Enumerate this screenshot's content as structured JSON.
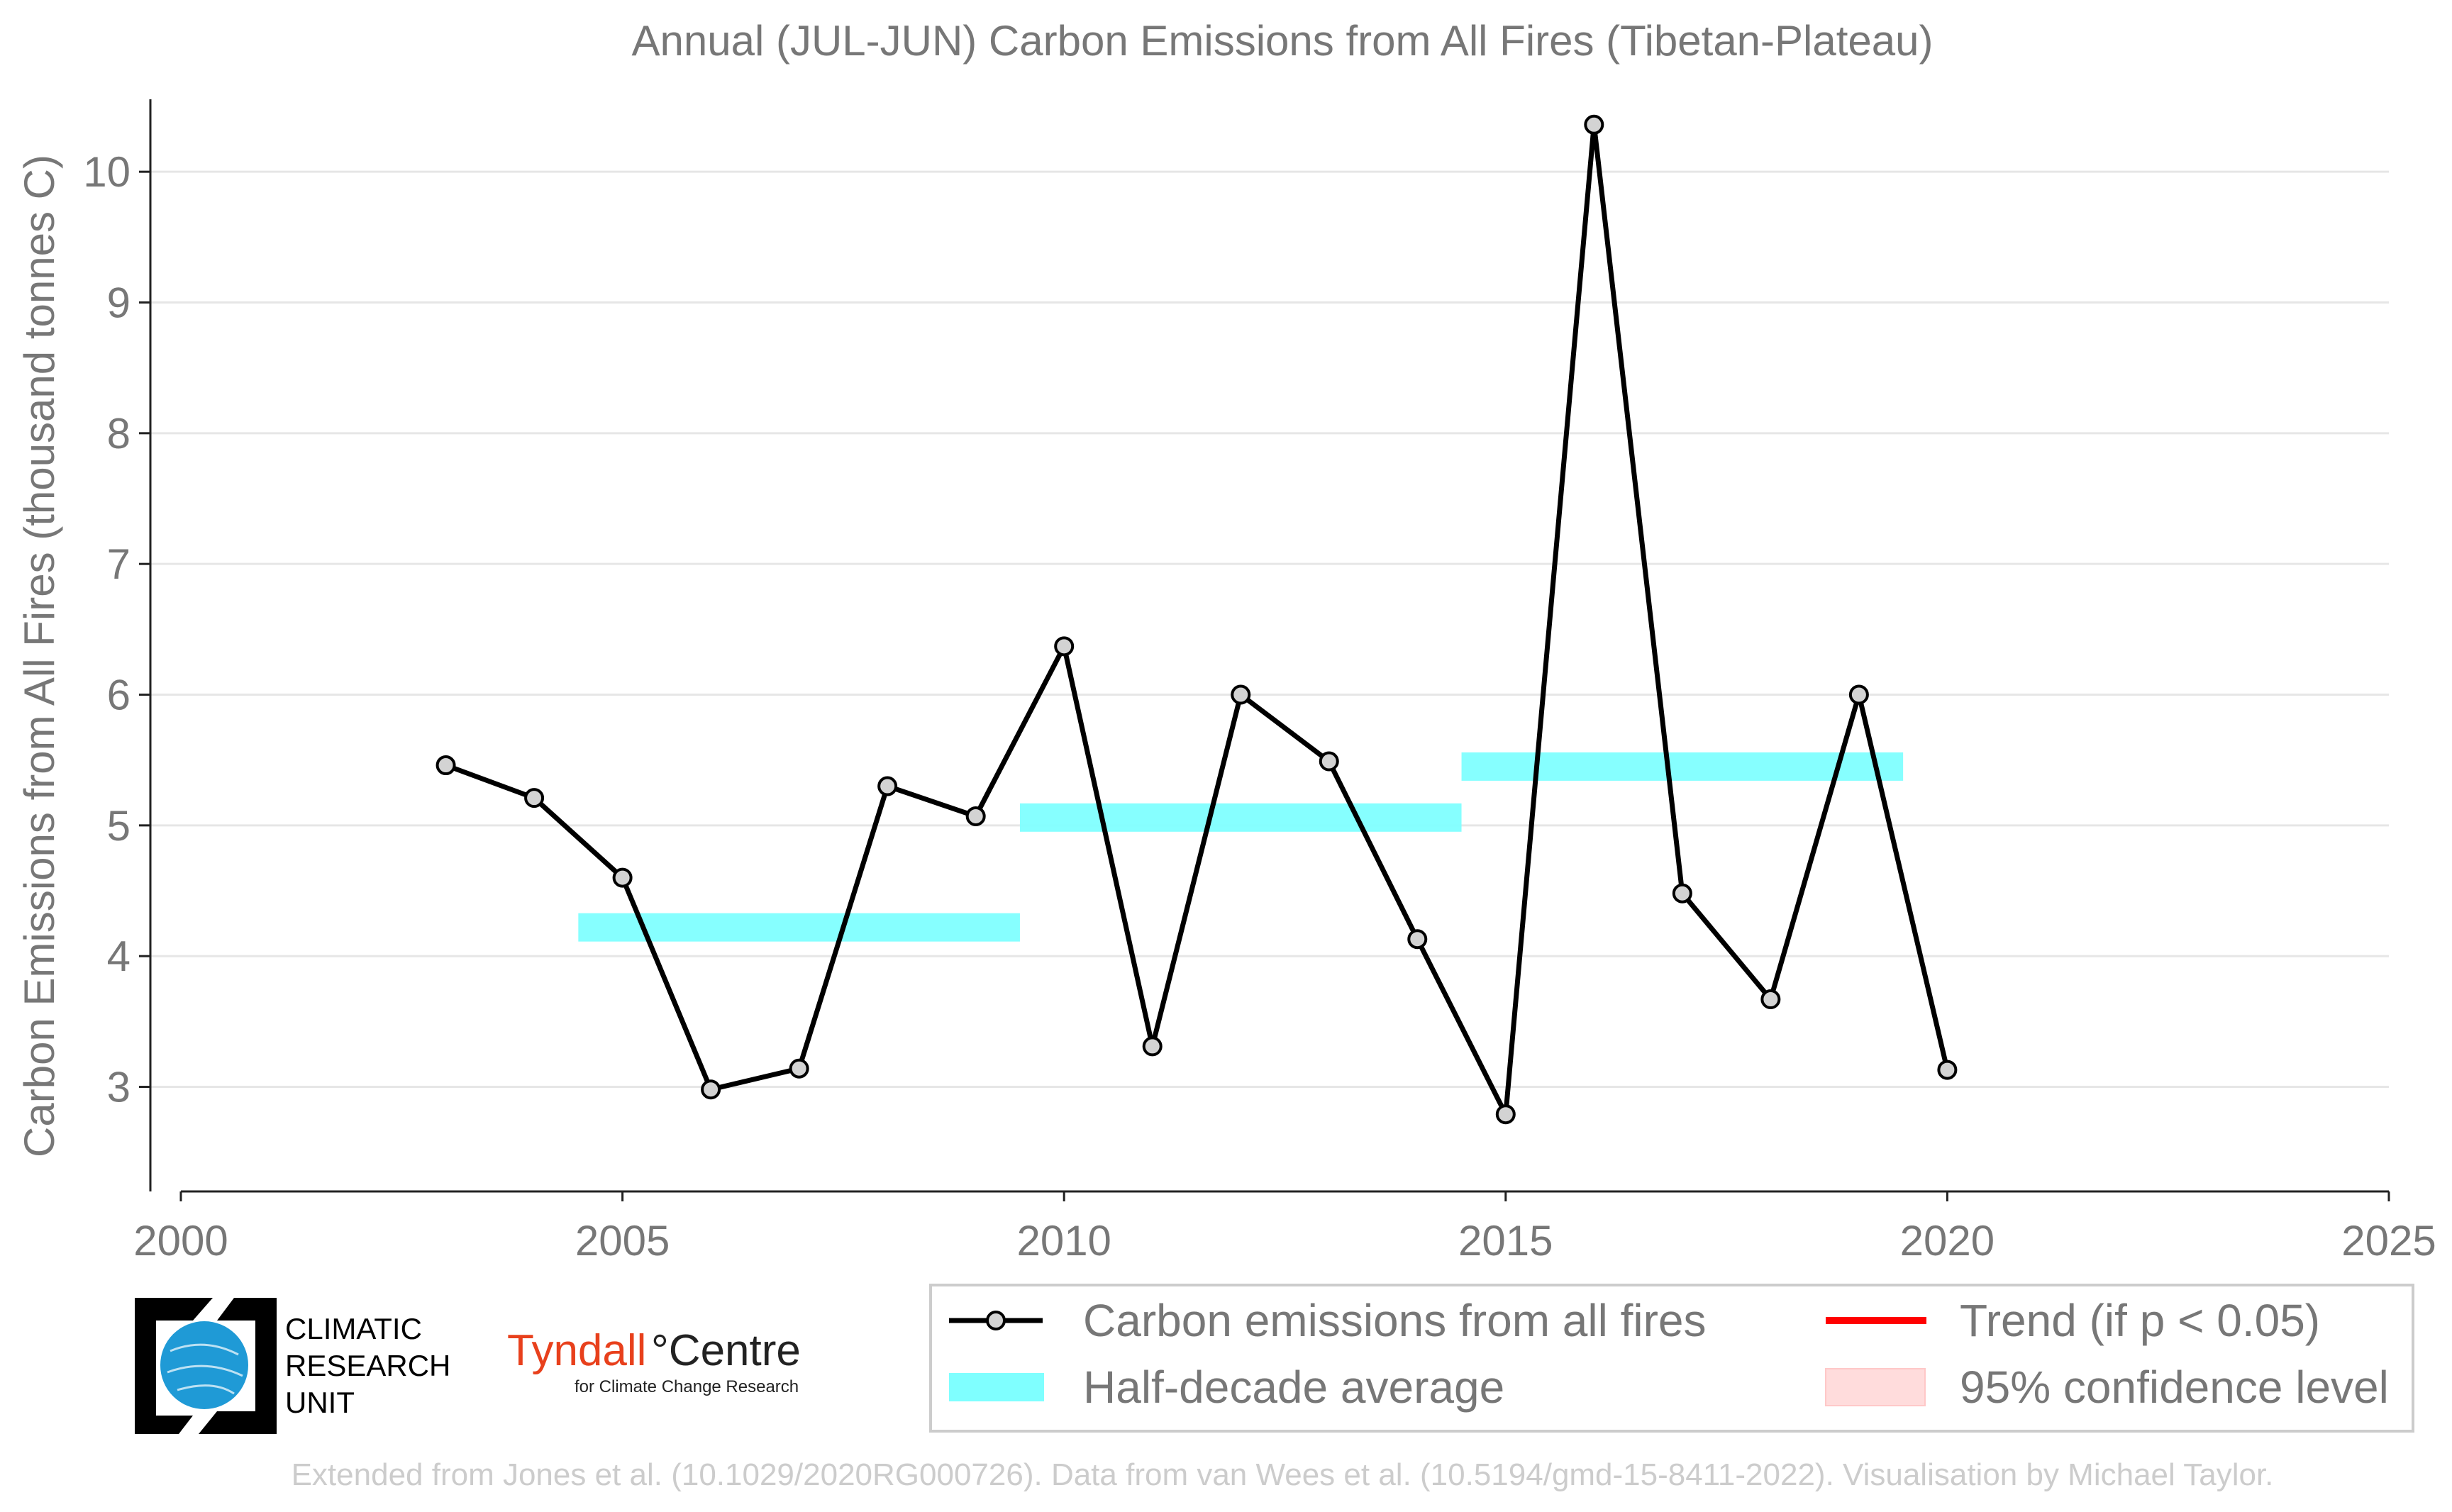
{
  "chart_data": {
    "type": "line",
    "title": "Annual (JUL-JUN) Carbon Emissions from All Fires (Tibetan-Plateau)",
    "xlabel": "",
    "ylabel": "Carbon Emissions from All Fires (thousand tonnes C)",
    "xlim": [
      2000,
      2025
    ],
    "ylim": [
      2.2,
      10.5
    ],
    "xticks": [
      2000,
      2005,
      2010,
      2015,
      2020,
      2025
    ],
    "yticks": [
      3,
      4,
      5,
      6,
      7,
      8,
      9,
      10
    ],
    "grid": "horizontal",
    "series": [
      {
        "name": "Carbon emissions from all fires",
        "color": "#000000",
        "marker_fill": "#d3d3d3",
        "x": [
          2003,
          2004,
          2005,
          2006,
          2007,
          2008,
          2009,
          2010,
          2011,
          2012,
          2013,
          2014,
          2015,
          2016,
          2017,
          2018,
          2019,
          2020
        ],
        "y": [
          5.46,
          5.21,
          4.6,
          2.98,
          3.14,
          5.3,
          5.07,
          6.37,
          3.31,
          6.0,
          5.49,
          4.13,
          2.79,
          10.36,
          4.48,
          3.67,
          6.0,
          3.13
        ]
      }
    ],
    "half_decade_average": {
      "name": "Half-decade average",
      "color": "#7fffff",
      "segments": [
        {
          "x0": 2004.5,
          "x1": 2009.5,
          "y": 4.22
        },
        {
          "x0": 2009.5,
          "x1": 2014.5,
          "y": 5.06
        },
        {
          "x0": 2014.5,
          "x1": 2019.5,
          "y": 5.45
        }
      ]
    },
    "legend": {
      "placement": "bottom-right",
      "entries": [
        {
          "label": "Carbon emissions from all fires",
          "kind": "line-marker",
          "color": "#000000"
        },
        {
          "label": "Trend (if p < 0.05)",
          "kind": "line",
          "color": "#ff0000"
        },
        {
          "label": "Half-decade average",
          "kind": "band",
          "color": "#7fffff"
        },
        {
          "label": "95% confidence level",
          "kind": "patch",
          "color": "#ffd8d8"
        }
      ]
    }
  },
  "credit": "Extended from Jones et al. (10.1029/2020RG000726). Data from van Wees et al. (10.5194/gmd-15-8411-2022). Visualisation by Michael Taylor.",
  "logos": {
    "cru": {
      "line1": "CLIMATIC",
      "line2": "RESEARCH",
      "line3": "UNIT"
    },
    "tyndall": {
      "main": "Tyndall",
      "centre": "°Centre",
      "sub": "for Climate Change Research"
    }
  }
}
